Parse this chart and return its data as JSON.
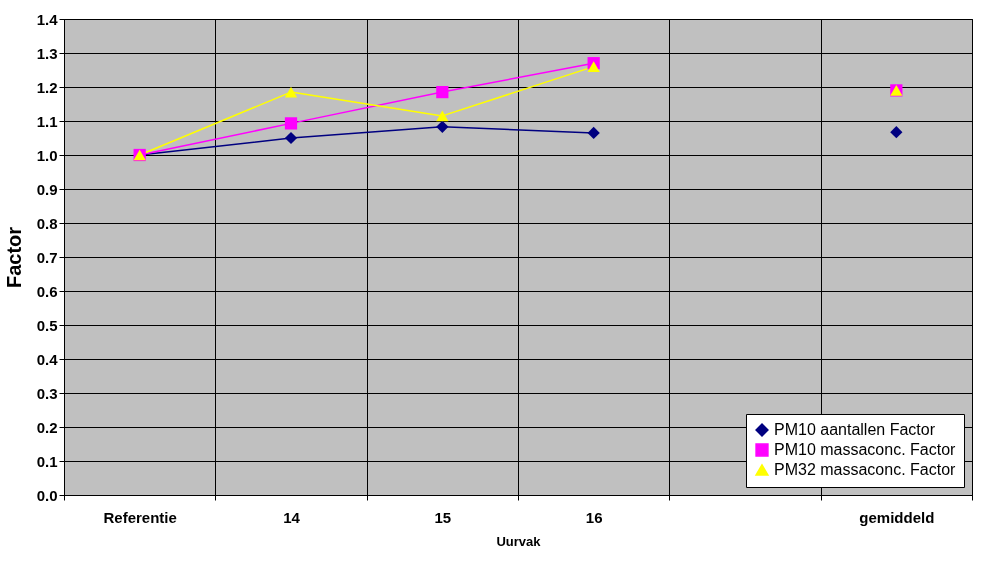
{
  "chart_data": {
    "type": "line",
    "xlabel": "Uurvak",
    "ylabel": "Factor",
    "categories": [
      "Referentie",
      "14",
      "15",
      "16",
      null,
      "gemiddeld"
    ],
    "series": [
      {
        "name": "PM10 aantallen Factor",
        "color": "#000080",
        "marker": "diamond",
        "values": [
          1.0,
          1.05,
          1.083,
          1.065,
          null,
          1.067
        ]
      },
      {
        "name": "PM10 massaconc. Factor",
        "color": "#ff00ff",
        "marker": "square",
        "values": [
          1.0,
          1.093,
          1.185,
          1.27,
          null,
          1.19
        ]
      },
      {
        "name": "PM32 massaconc. Factor",
        "color": "#ffff00",
        "marker": "triangle",
        "values": [
          1.0,
          1.185,
          1.115,
          1.26,
          null,
          1.19
        ]
      }
    ],
    "ylim": [
      0,
      1.4
    ],
    "yticks": [
      {
        "value": 0,
        "label": "0.0"
      },
      {
        "value": 0.1,
        "label": "0.1"
      },
      {
        "value": 0.2,
        "label": "0.2"
      },
      {
        "value": 0.3,
        "label": "0.3"
      },
      {
        "value": 0.4,
        "label": "0.4"
      },
      {
        "value": 0.5,
        "label": "0.5"
      },
      {
        "value": 0.6,
        "label": "0.6"
      },
      {
        "value": 0.7,
        "label": "0.7"
      },
      {
        "value": 0.8,
        "label": "0.8"
      },
      {
        "value": 0.9,
        "label": "0.9"
      },
      {
        "value": 1.0,
        "label": "1.0"
      },
      {
        "value": 1.1,
        "label": "1.1"
      },
      {
        "value": 1.2,
        "label": "1.2"
      },
      {
        "value": 1.3,
        "label": "1.3"
      },
      {
        "value": 1.4,
        "label": "1.4"
      }
    ],
    "grid": true,
    "legend": "bottom right",
    "line_style": "solid"
  }
}
